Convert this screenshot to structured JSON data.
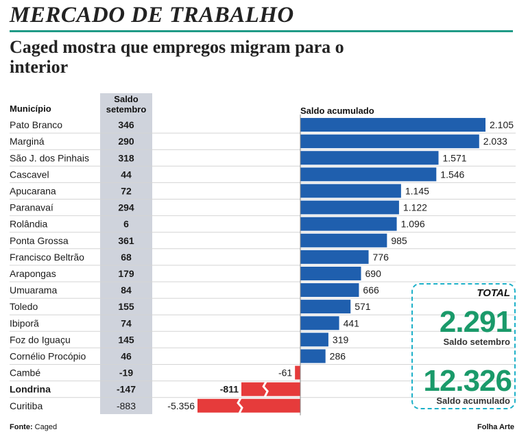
{
  "header": {
    "section": "MERCADO DE TRABALHO",
    "headline": "Caged mostra que empregos migram para o interior"
  },
  "columns": {
    "municipio": "Município",
    "saldo_line1": "Saldo",
    "saldo_line2": "setembro",
    "acumulado": "Saldo acumulado"
  },
  "footer": {
    "source_label": "Fonte:",
    "source": "Caged",
    "credit": "Folha Arte"
  },
  "total": {
    "label": "TOTAL",
    "setembro_value": "2.291",
    "setembro_caption": "Saldo setembro",
    "acumulado_value": "12.326",
    "acumulado_caption": "Saldo acumulado"
  },
  "colors": {
    "positive": "#1f5fae",
    "negative": "#e63b3b",
    "accent": "#1f9a86",
    "total_number": "#1a9a6a",
    "column_band": "#cfd3dc"
  },
  "chart_data": {
    "type": "bar",
    "orientation": "horizontal",
    "categories": [
      "Pato Branco",
      "Marginá",
      "São J. dos Pinhais",
      "Cascavel",
      "Apucarana",
      "Paranavaí",
      "Rolândia",
      "Ponta Grossa",
      "Francisco Beltrão",
      "Arapongas",
      "Umuarama",
      "Toledo",
      "Ibiporã",
      "Foz do Iguaçu",
      "Cornélio Procópio",
      "Cambé",
      "Londrina",
      "Curitiba"
    ],
    "saldo_setembro": [
      346,
      290,
      318,
      44,
      72,
      294,
      6,
      361,
      68,
      179,
      84,
      155,
      74,
      145,
      46,
      -19,
      -147,
      -883
    ],
    "saldo_setembro_labels": [
      "346",
      "290",
      "318",
      "44",
      "72",
      "294",
      "6",
      "361",
      "68",
      "179",
      "84",
      "155",
      "74",
      "145",
      "46",
      "-19",
      "-147",
      "-883"
    ],
    "values": [
      2105,
      2033,
      1571,
      1546,
      1145,
      1122,
      1096,
      985,
      776,
      690,
      666,
      571,
      441,
      319,
      286,
      -61,
      -811,
      -5356
    ],
    "value_labels": [
      "2.105",
      "2.033",
      "1.571",
      "1.546",
      "1.145",
      "1.122",
      "1.096",
      "985",
      "776",
      "690",
      "666",
      "571",
      "441",
      "319",
      "286",
      "-61",
      "-811",
      "-5.356"
    ],
    "bold_rows": [
      "Londrina"
    ],
    "broken_bars": [
      "Londrina",
      "Curitiba"
    ]
  }
}
